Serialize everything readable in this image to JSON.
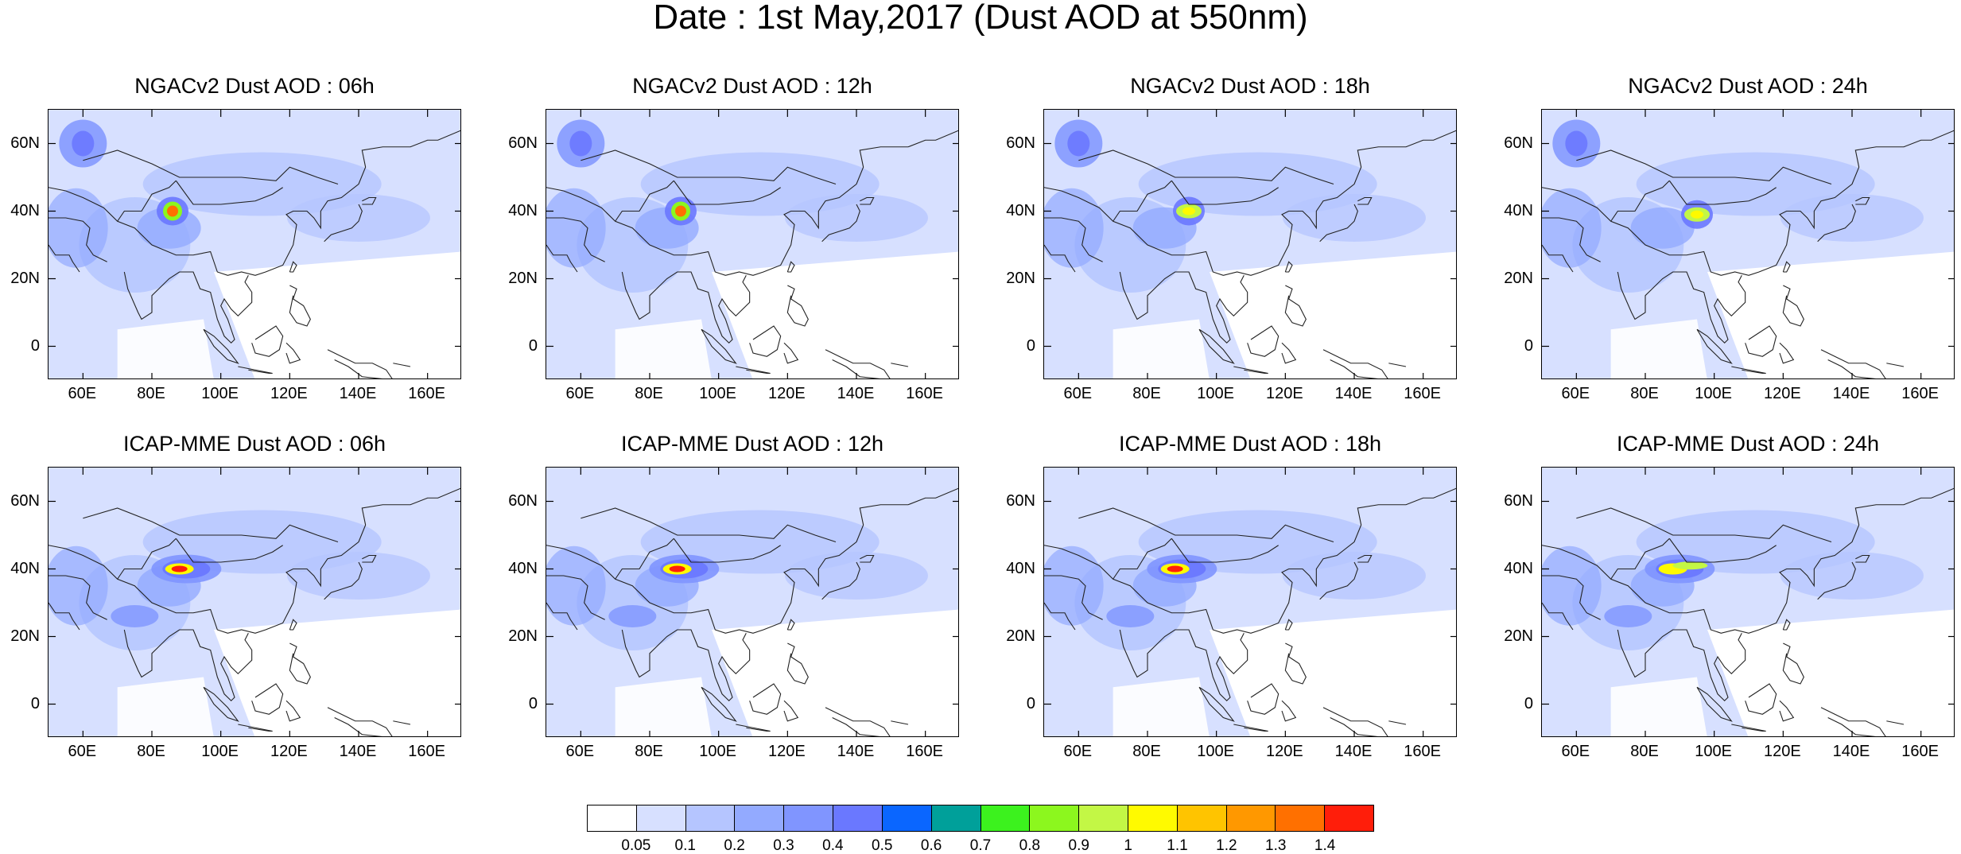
{
  "title": "Date : 1st May,2017 (Dust AOD at 550nm)",
  "panels": [
    {
      "title": "NGACv2 Dust AOD : 06h"
    },
    {
      "title": "NGACv2 Dust AOD : 12h"
    },
    {
      "title": "NGACv2 Dust AOD : 18h"
    },
    {
      "title": "NGACv2 Dust AOD : 24h"
    },
    {
      "title": "ICAP-MME Dust AOD : 06h"
    },
    {
      "title": "ICAP-MME Dust AOD : 12h"
    },
    {
      "title": "ICAP-MME Dust AOD : 18h"
    },
    {
      "title": "ICAP-MME Dust AOD : 24h"
    }
  ],
  "axes": {
    "lat_ticks": [
      "60N",
      "40N",
      "20N",
      "0"
    ],
    "lon_ticks": [
      "60E",
      "80E",
      "100E",
      "120E",
      "140E",
      "160E"
    ]
  },
  "colorbar": {
    "colors": [
      "#ffffff",
      "#d7e0ff",
      "#b5c5ff",
      "#93aaff",
      "#8095ff",
      "#6a78ff",
      "#0a66ff",
      "#00a09a",
      "#3cf21e",
      "#8cf71e",
      "#c3f745",
      "#fffa00",
      "#ffc400",
      "#ff9800",
      "#ff7000",
      "#ff1e0a"
    ],
    "labels": [
      "0.05",
      "0.1",
      "0.2",
      "0.3",
      "0.4",
      "0.5",
      "0.6",
      "0.7",
      "0.8",
      "0.9",
      "1",
      "1.1",
      "1.2",
      "1.3",
      "1.4"
    ]
  }
}
